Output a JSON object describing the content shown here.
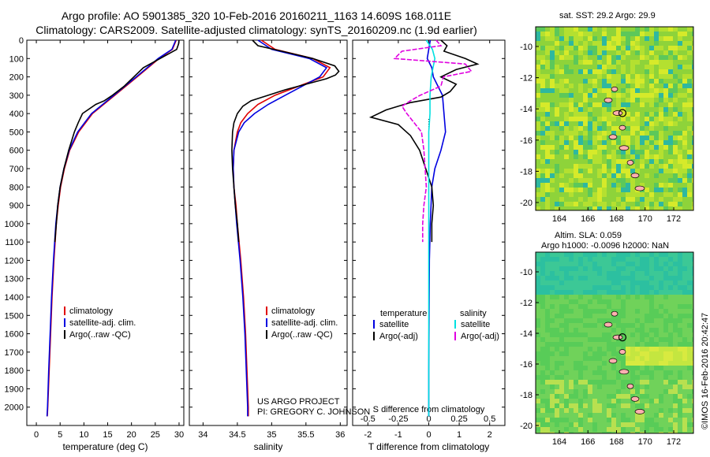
{
  "header": {
    "title_line1": "Argo profile: AO 5901385_320 10-Feb-2016 20160211_1163 14.609S 168.011E",
    "title_line2": "Climatology: CARS2009. Satellite-adjusted climatology: synTS_20160209.nc (1.9d earlier)"
  },
  "colors": {
    "climatology": "#e00000",
    "satellite": "#0000e0",
    "argo": "#000000",
    "sal_satellite": "#00e0e0",
    "sal_argo": "#e000e0"
  },
  "credit": {
    "line1": "US ARGO PROJECT",
    "line2": "PI: GREGORY C. JOHNSON"
  },
  "map_sst": {
    "title": "sat. SST: 29.2  Argo: 29.9",
    "yticks": [
      "-10",
      "-12",
      "-14",
      "-16",
      "-18",
      "-20"
    ],
    "xticks": [
      "164",
      "166",
      "168",
      "170",
      "172"
    ]
  },
  "map_sla": {
    "title_line1": "Altim. SLA: 0.059",
    "title_line2": "Argo h1000: -0.0096 h2000: NaN",
    "yticks": [
      "-10",
      "-12",
      "-14",
      "-16",
      "-18",
      "-20"
    ],
    "xticks": [
      "164",
      "166",
      "168",
      "170",
      "172"
    ]
  },
  "imos_stamp": "©IMOS 16-Feb-2016 20:42:47",
  "chart_data": [
    {
      "type": "line",
      "xlabel": "temperature (deg C)",
      "ylabel": "",
      "xlim": [
        -2,
        31
      ],
      "ylim": [
        2100,
        0
      ],
      "xticks": [
        0,
        5,
        10,
        15,
        20,
        25,
        30
      ],
      "yticks": [
        0,
        100,
        200,
        300,
        400,
        500,
        600,
        700,
        800,
        900,
        1000,
        1100,
        1200,
        1300,
        1400,
        1500,
        1600,
        1700,
        1800,
        1900,
        2000
      ],
      "legend": [
        "climatology",
        "satellite-adj. clim.",
        "Argo(..raw -QC)"
      ],
      "series": [
        {
          "name": "climatology",
          "y": [
            0,
            50,
            100,
            200,
            300,
            400,
            500,
            600,
            700,
            800,
            900,
            1000,
            1200,
            1400,
            1600,
            1800,
            2000,
            2050
          ],
          "values": [
            29.4,
            28.6,
            25.8,
            21.2,
            16.5,
            11.8,
            8.9,
            7.0,
            5.9,
            5.1,
            4.6,
            4.2,
            3.7,
            3.3,
            3.0,
            2.7,
            2.4,
            2.3
          ]
        },
        {
          "name": "satellite-adj. clim.",
          "y": [
            0,
            50,
            100,
            200,
            300,
            400,
            500,
            600,
            700,
            800,
            900,
            1000,
            1200,
            1400,
            1600,
            1800,
            2000,
            2050
          ],
          "values": [
            29.3,
            28.5,
            25.6,
            21.0,
            16.3,
            11.6,
            8.7,
            6.9,
            5.8,
            5.0,
            4.5,
            4.1,
            3.6,
            3.2,
            2.9,
            2.6,
            2.35,
            2.25
          ]
        },
        {
          "name": "Argo(..raw -QC)",
          "y": [
            0,
            20,
            50,
            100,
            150,
            200,
            250,
            300,
            330,
            350,
            400,
            450,
            500,
            600,
            700,
            800,
            900,
            1000,
            1100
          ],
          "values": [
            30.0,
            29.9,
            29.5,
            26.0,
            22.5,
            20.5,
            18.5,
            16.0,
            14.3,
            12.5,
            9.7,
            8.8,
            8.0,
            6.8,
            5.8,
            5.0,
            4.5,
            4.2,
            3.9
          ]
        }
      ]
    },
    {
      "type": "line",
      "xlabel": "salinity",
      "ylabel": "",
      "xlim": [
        33.8,
        36.1
      ],
      "ylim": [
        2100,
        0
      ],
      "xticks": [
        34,
        34.5,
        35,
        35.5,
        36
      ],
      "legend": [
        "climatology",
        "satellite-adj. clim.",
        "Argo(..raw -QC)"
      ],
      "series": [
        {
          "name": "climatology",
          "y": [
            0,
            50,
            100,
            150,
            200,
            250,
            300,
            350,
            400,
            450,
            500,
            600,
            700,
            800,
            900,
            1000,
            1200,
            1400,
            1600,
            1800,
            2000,
            2050
          ],
          "values": [
            34.85,
            35.05,
            35.6,
            35.85,
            35.75,
            35.4,
            35.05,
            34.8,
            34.65,
            34.55,
            34.5,
            34.45,
            34.44,
            34.45,
            34.48,
            34.5,
            34.55,
            34.59,
            34.62,
            34.64,
            34.66,
            34.66
          ]
        },
        {
          "name": "satellite-adj. clim.",
          "y": [
            0,
            50,
            100,
            150,
            200,
            250,
            300,
            350,
            400,
            450,
            500,
            600,
            700,
            800,
            900,
            1000,
            1200,
            1400,
            1600,
            1800,
            2000,
            2050
          ],
          "values": [
            34.8,
            35.0,
            35.55,
            35.8,
            35.7,
            35.45,
            35.2,
            34.95,
            34.75,
            34.6,
            34.52,
            34.45,
            34.44,
            34.45,
            34.47,
            34.49,
            34.54,
            34.58,
            34.61,
            34.63,
            34.65,
            34.65
          ]
        },
        {
          "name": "Argo(..raw -QC)",
          "y": [
            0,
            30,
            60,
            100,
            140,
            170,
            190,
            210,
            240,
            270,
            300,
            330,
            360,
            400,
            450,
            500,
            600,
            700,
            800,
            900,
            1000,
            1100
          ],
          "values": [
            34.72,
            34.8,
            35.15,
            35.6,
            35.92,
            35.98,
            35.93,
            35.8,
            35.5,
            35.2,
            34.95,
            34.7,
            34.58,
            34.5,
            34.45,
            34.43,
            34.42,
            34.43,
            34.45,
            34.47,
            34.5,
            34.52
          ]
        }
      ]
    },
    {
      "type": "line",
      "xlabel": "T difference from climatology",
      "xlabel_top": "S difference from climatology",
      "ylabel": "",
      "xlim": [
        -2.5,
        2.5
      ],
      "ylim": [
        2100,
        0
      ],
      "xticks": [
        -2,
        -1,
        0,
        1,
        2
      ],
      "xticks_s": [
        -0.5,
        -0.25,
        0,
        0.25,
        0.5
      ],
      "legend_titles": [
        "temperature",
        "salinity"
      ],
      "legend": [
        "satellite",
        "Argo(-adj)",
        "satellite",
        "Argo(-adj)"
      ],
      "series": [
        {
          "name": "satellite",
          "y": [
            0,
            50,
            100,
            150,
            200,
            250,
            300,
            400,
            500,
            600,
            700,
            800,
            1000,
            1200,
            1500,
            1800,
            2050
          ],
          "values": [
            0.05,
            0.0,
            -0.05,
            0.1,
            0.15,
            0.3,
            0.45,
            0.5,
            0.55,
            0.4,
            0.2,
            0.1,
            0.05,
            0.02,
            0.01,
            0.0,
            0.0
          ]
        },
        {
          "name": "Argo(-adj)",
          "y": [
            0,
            30,
            60,
            100,
            130,
            160,
            200,
            240,
            280,
            310,
            340,
            380,
            420,
            460,
            520,
            600,
            700,
            800,
            900,
            1000,
            1100
          ],
          "values": [
            0.4,
            0.6,
            0.5,
            1.2,
            1.6,
            0.9,
            0.4,
            0.9,
            0.7,
            0.4,
            -0.6,
            -1.4,
            -1.9,
            -1.0,
            -0.6,
            -0.3,
            -0.1,
            0.1,
            0.15,
            0.1,
            0.1
          ]
        },
        {
          "name": "satellite",
          "y": [
            0,
            50,
            100,
            200,
            300,
            400,
            500,
            600,
            800,
            1000,
            1200,
            1500,
            1800,
            2050
          ],
          "values": [
            -0.02,
            0.03,
            0.05,
            0.02,
            0.01,
            0.01,
            0.0,
            0.0,
            0.0,
            0.0,
            0.0,
            0.0,
            0.0,
            0.0
          ]
        },
        {
          "name": "Argo(-adj)",
          "y": [
            0,
            30,
            60,
            100,
            130,
            170,
            200,
            250,
            300,
            330,
            360,
            400,
            450,
            500,
            600,
            700,
            800,
            900,
            1000,
            1100
          ],
          "values": [
            0.06,
            0.1,
            -0.22,
            -0.28,
            0.3,
            0.35,
            0.12,
            0.1,
            -0.07,
            -0.15,
            -0.22,
            -0.18,
            -0.12,
            -0.06,
            -0.04,
            -0.03,
            -0.02,
            -0.04,
            -0.05,
            -0.05
          ]
        }
      ]
    }
  ]
}
